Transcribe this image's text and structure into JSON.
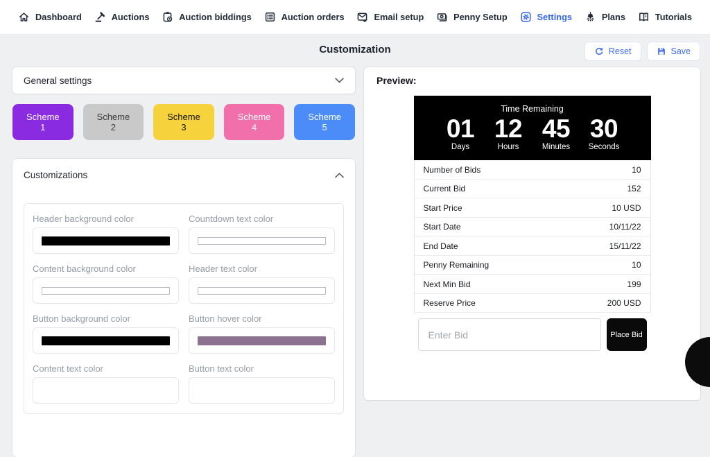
{
  "nav": {
    "items": [
      {
        "label": "Dashboard",
        "icon": "home-icon",
        "active": false
      },
      {
        "label": "Auctions",
        "icon": "gavel-icon",
        "active": false
      },
      {
        "label": "Auction biddings",
        "icon": "clipboard-clock-icon",
        "active": false
      },
      {
        "label": "Auction orders",
        "icon": "list-icon",
        "active": false
      },
      {
        "label": "Email setup",
        "icon": "envelope-check-icon",
        "active": false
      },
      {
        "label": "Penny Setup",
        "icon": "banknote-icon",
        "active": false
      },
      {
        "label": "Settings",
        "icon": "gear-icon",
        "active": true
      },
      {
        "label": "Plans",
        "icon": "lamp-icon",
        "active": false
      },
      {
        "label": "Tutorials",
        "icon": "book-icon",
        "active": false
      }
    ],
    "active_color": "#3565f1"
  },
  "header": {
    "title": "Customization",
    "reset_label": "Reset",
    "save_label": "Save",
    "button_color": "#3d6bf4"
  },
  "general_settings": {
    "title": "General settings"
  },
  "schemes": [
    {
      "label": "Scheme 1",
      "bg": "#8a2be2",
      "fg": "#ffffff"
    },
    {
      "label": "Scheme 2",
      "bg": "#c9c9c9",
      "fg": "#3a3a3a"
    },
    {
      "label": "Scheme 3",
      "bg": "#f6d23c",
      "fg": "#141414"
    },
    {
      "label": "Scheme 4",
      "bg": "#f170ab",
      "fg": "#ffffff"
    },
    {
      "label": "Scheme 5",
      "bg": "#4c8cf8",
      "fg": "#ffffff"
    }
  ],
  "customizations": {
    "title": "Customizations",
    "fields": [
      {
        "label": "Header background color",
        "swatch": "#000000",
        "outlined": false
      },
      {
        "label": "Countdown text color",
        "swatch": "#ffffff",
        "outlined": true
      },
      {
        "label": "Content background color",
        "swatch": "#ffffff",
        "outlined": true
      },
      {
        "label": "Header text color",
        "swatch": "#ffffff",
        "outlined": true
      },
      {
        "label": "Button background color",
        "swatch": "#000000",
        "outlined": false
      },
      {
        "label": "Button hover color",
        "swatch": "#8d7190",
        "outlined": false
      },
      {
        "label": "Content text color",
        "swatch": null,
        "outlined": false
      },
      {
        "label": "Button text color",
        "swatch": null,
        "outlined": false
      }
    ]
  },
  "preview": {
    "title": "Preview:",
    "countdown": {
      "heading": "Time Remaining",
      "bg": "#000000",
      "fg": "#ffffff",
      "units": [
        {
          "value": "01",
          "label": "Days"
        },
        {
          "value": "12",
          "label": "Hours"
        },
        {
          "value": "45",
          "label": "Minutes"
        },
        {
          "value": "30",
          "label": "Seconds"
        }
      ]
    },
    "table": {
      "rows": [
        {
          "label": "Number of Bids",
          "value": "10"
        },
        {
          "label": "Current Bid",
          "value": "152"
        },
        {
          "label": "Start Price",
          "value": "10 USD"
        },
        {
          "label": "Start Date",
          "value": "10/11/22"
        },
        {
          "label": "End Date",
          "value": "15/11/22"
        },
        {
          "label": "Penny Remaining",
          "value": "10"
        },
        {
          "label": "Next Min Bid",
          "value": "199"
        },
        {
          "label": "Reserve Price",
          "value": "200 USD"
        }
      ]
    },
    "bid": {
      "placeholder": "Enter Bid",
      "button_label": "Place Bid",
      "button_bg": "#0a0a0a"
    }
  }
}
